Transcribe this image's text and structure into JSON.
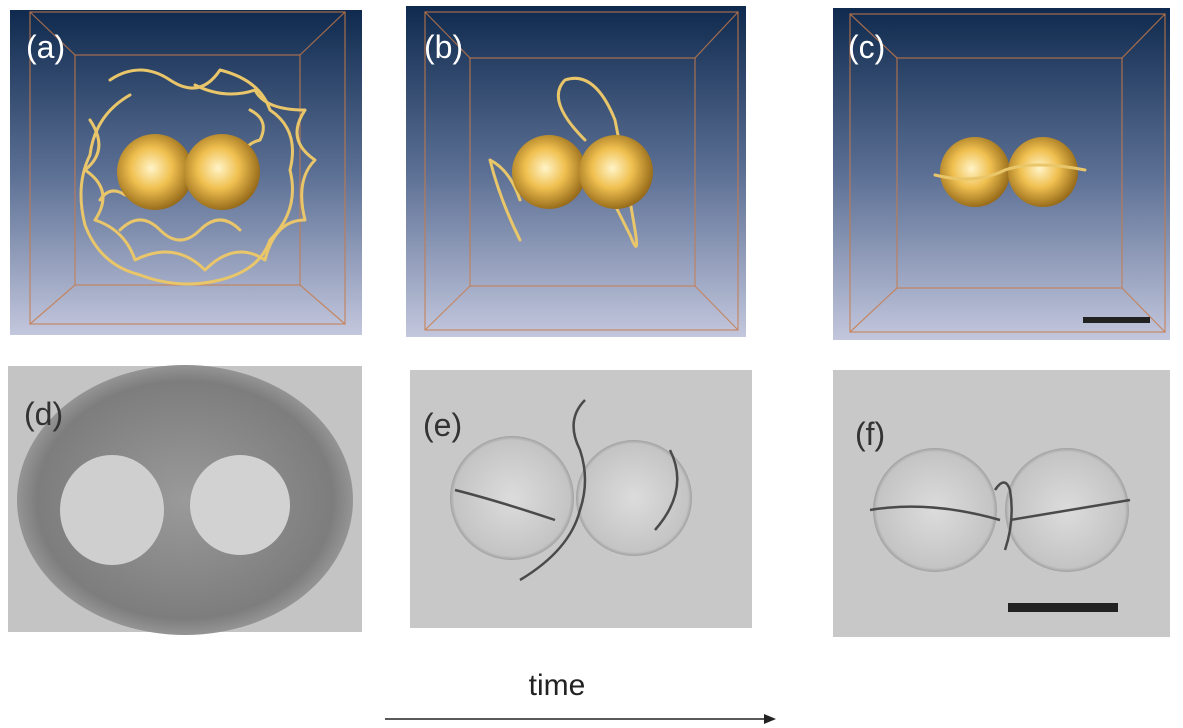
{
  "panels": [
    {
      "label": "(a)"
    },
    {
      "label": "(b)"
    },
    {
      "label": "(c)"
    },
    {
      "label": "(d)"
    },
    {
      "label": "(e)"
    },
    {
      "label": "(f)"
    }
  ],
  "time_label": "time"
}
